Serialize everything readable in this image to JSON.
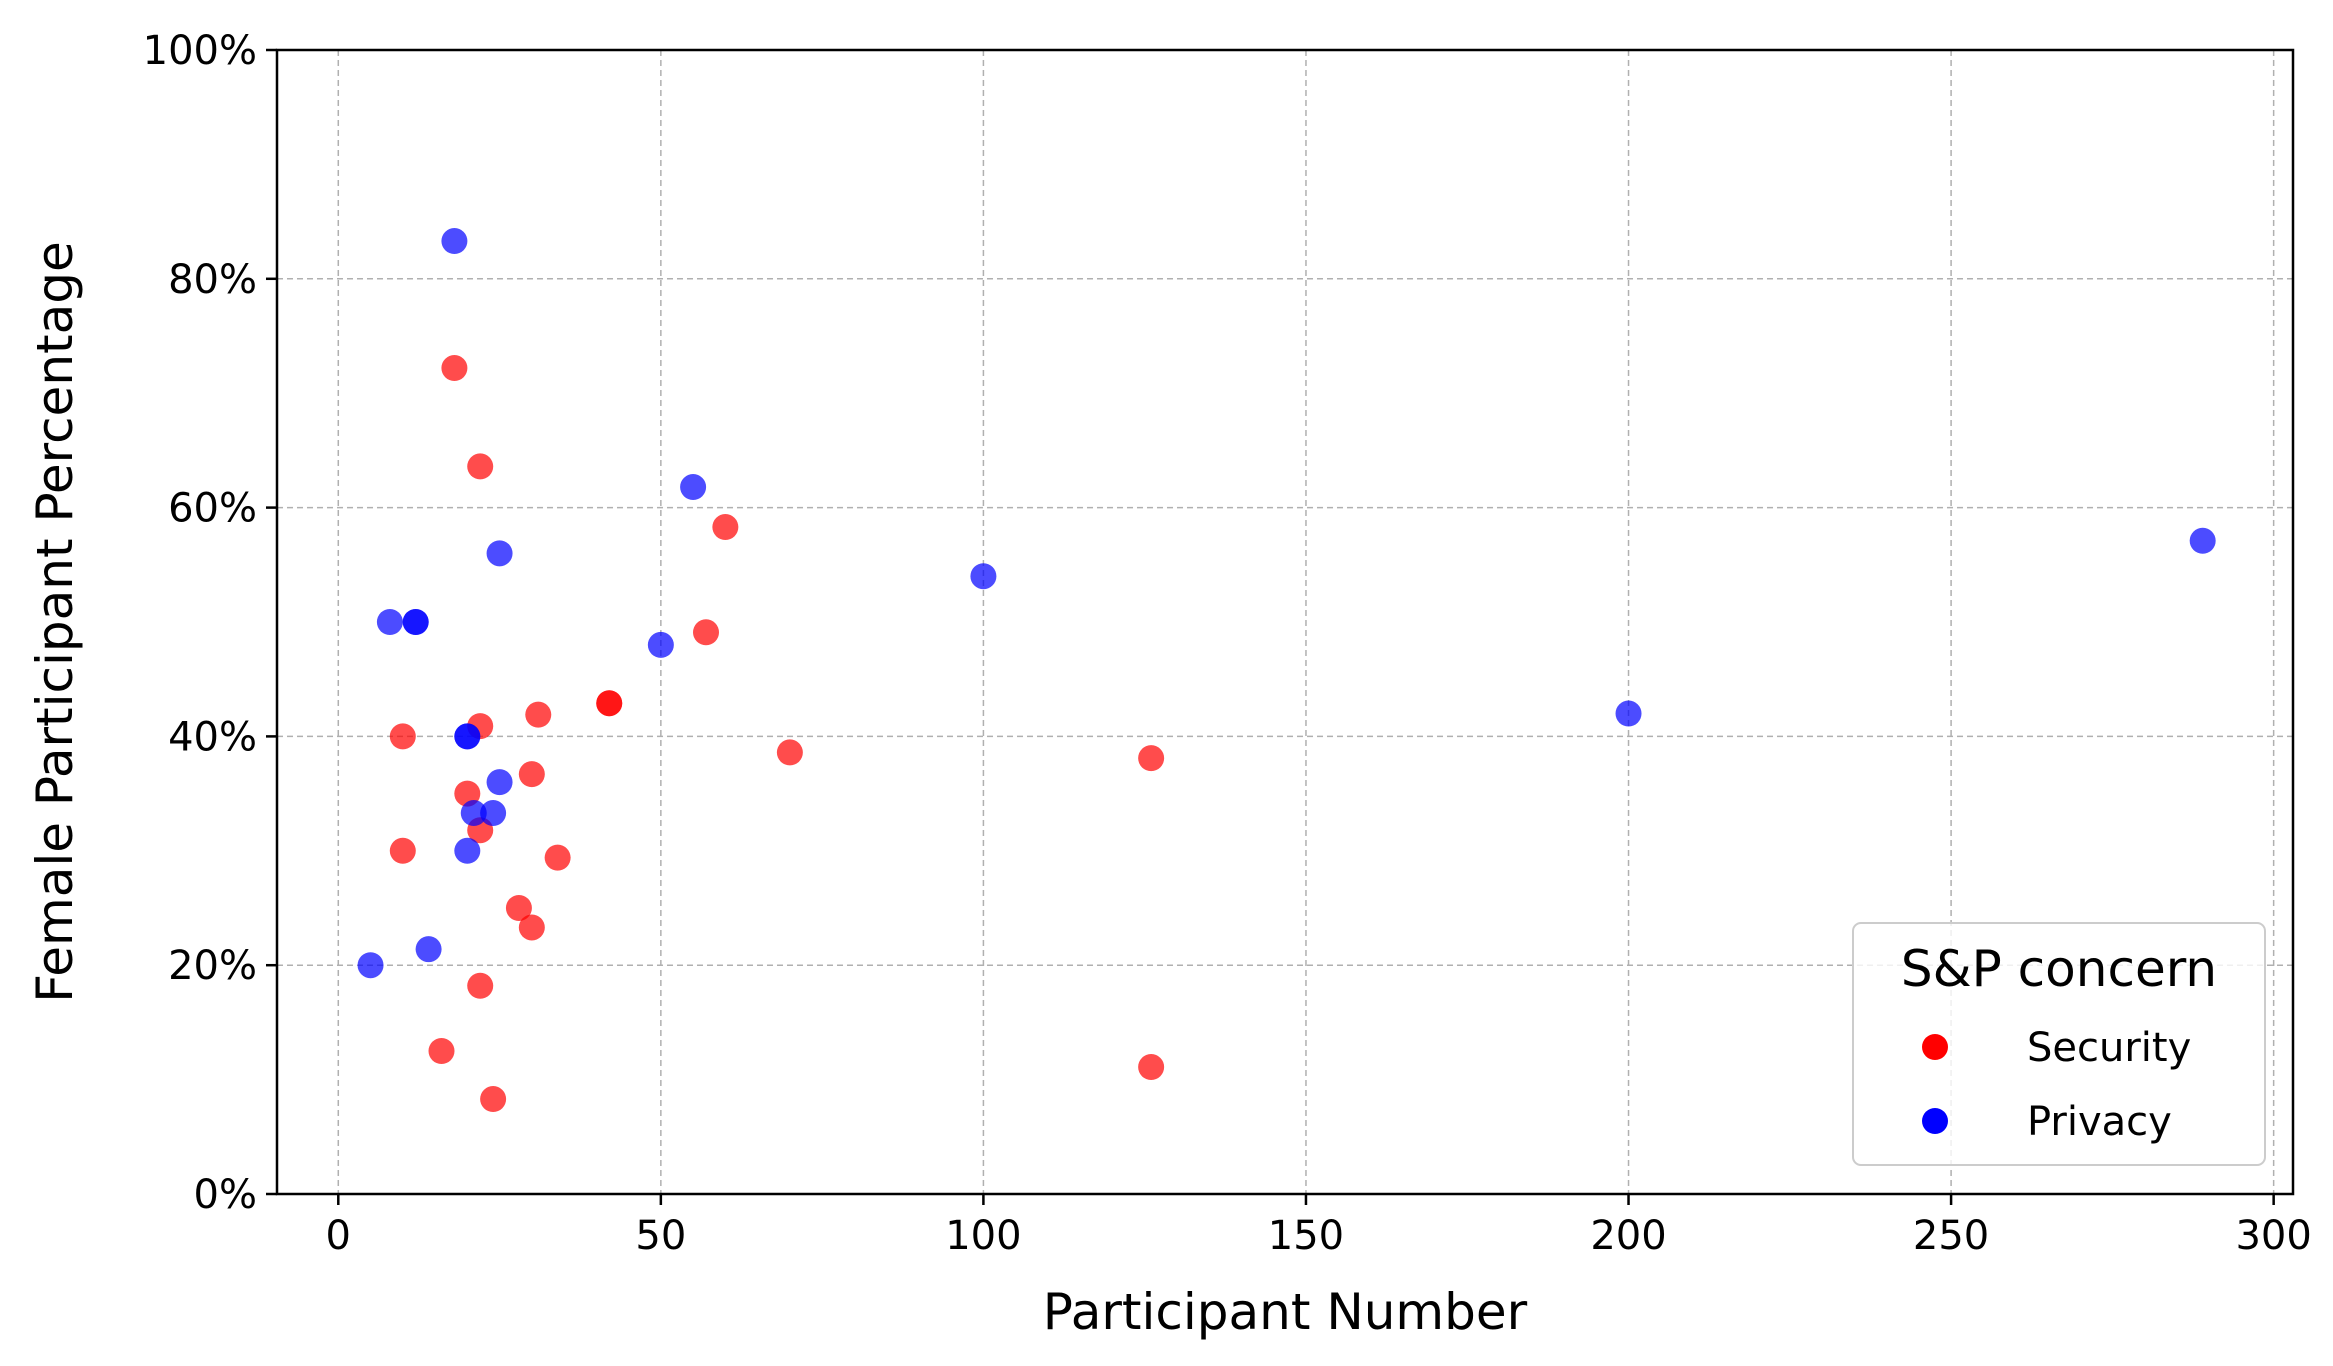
{
  "chart_data": {
    "type": "scatter",
    "xlabel": "Participant Number",
    "ylabel": "Female Participant Percentage",
    "xlim": [
      -9.5,
      303
    ],
    "ylim": [
      0,
      1
    ],
    "x_ticks": [
      0,
      50,
      100,
      150,
      200,
      250,
      300
    ],
    "x_tick_labels": [
      "0",
      "50",
      "100",
      "150",
      "200",
      "250",
      "300"
    ],
    "y_ticks": [
      0,
      0.2,
      0.4,
      0.6,
      0.8,
      1.0
    ],
    "y_tick_labels": [
      "0%",
      "20%",
      "40%",
      "60%",
      "80%",
      "100%"
    ],
    "grid": true,
    "legend": {
      "title": "S&P concern",
      "position": "bottom-right",
      "entries": [
        {
          "label": "Security",
          "color": "#ff0000"
        },
        {
          "label": "Privacy",
          "color": "#0000ff"
        }
      ]
    },
    "series": [
      {
        "name": "Security",
        "color": "#ff0000",
        "points": [
          {
            "x": 18,
            "y": 0.722
          },
          {
            "x": 22,
            "y": 0.636
          },
          {
            "x": 60,
            "y": 0.583
          },
          {
            "x": 57,
            "y": 0.491
          },
          {
            "x": 42,
            "y": 0.429
          },
          {
            "x": 42,
            "y": 0.429
          },
          {
            "x": 31,
            "y": 0.419
          },
          {
            "x": 22,
            "y": 0.409
          },
          {
            "x": 10,
            "y": 0.4
          },
          {
            "x": 70,
            "y": 0.386
          },
          {
            "x": 126,
            "y": 0.381
          },
          {
            "x": 30,
            "y": 0.367
          },
          {
            "x": 20,
            "y": 0.35
          },
          {
            "x": 22,
            "y": 0.318
          },
          {
            "x": 10,
            "y": 0.3
          },
          {
            "x": 34,
            "y": 0.294
          },
          {
            "x": 28,
            "y": 0.25
          },
          {
            "x": 30,
            "y": 0.233
          },
          {
            "x": 22,
            "y": 0.182
          },
          {
            "x": 16,
            "y": 0.125
          },
          {
            "x": 126,
            "y": 0.111
          },
          {
            "x": 24,
            "y": 0.083
          }
        ]
      },
      {
        "name": "Privacy",
        "color": "#0000ff",
        "points": [
          {
            "x": 18,
            "y": 0.833
          },
          {
            "x": 55,
            "y": 0.618
          },
          {
            "x": 289,
            "y": 0.571
          },
          {
            "x": 25,
            "y": 0.56
          },
          {
            "x": 100,
            "y": 0.54
          },
          {
            "x": 8,
            "y": 0.5
          },
          {
            "x": 12,
            "y": 0.5
          },
          {
            "x": 12,
            "y": 0.5
          },
          {
            "x": 50,
            "y": 0.48
          },
          {
            "x": 200,
            "y": 0.42
          },
          {
            "x": 20,
            "y": 0.4
          },
          {
            "x": 20,
            "y": 0.4
          },
          {
            "x": 25,
            "y": 0.36
          },
          {
            "x": 21,
            "y": 0.333
          },
          {
            "x": 24,
            "y": 0.333
          },
          {
            "x": 20,
            "y": 0.3
          },
          {
            "x": 14,
            "y": 0.214
          },
          {
            "x": 5,
            "y": 0.2
          }
        ]
      }
    ]
  }
}
